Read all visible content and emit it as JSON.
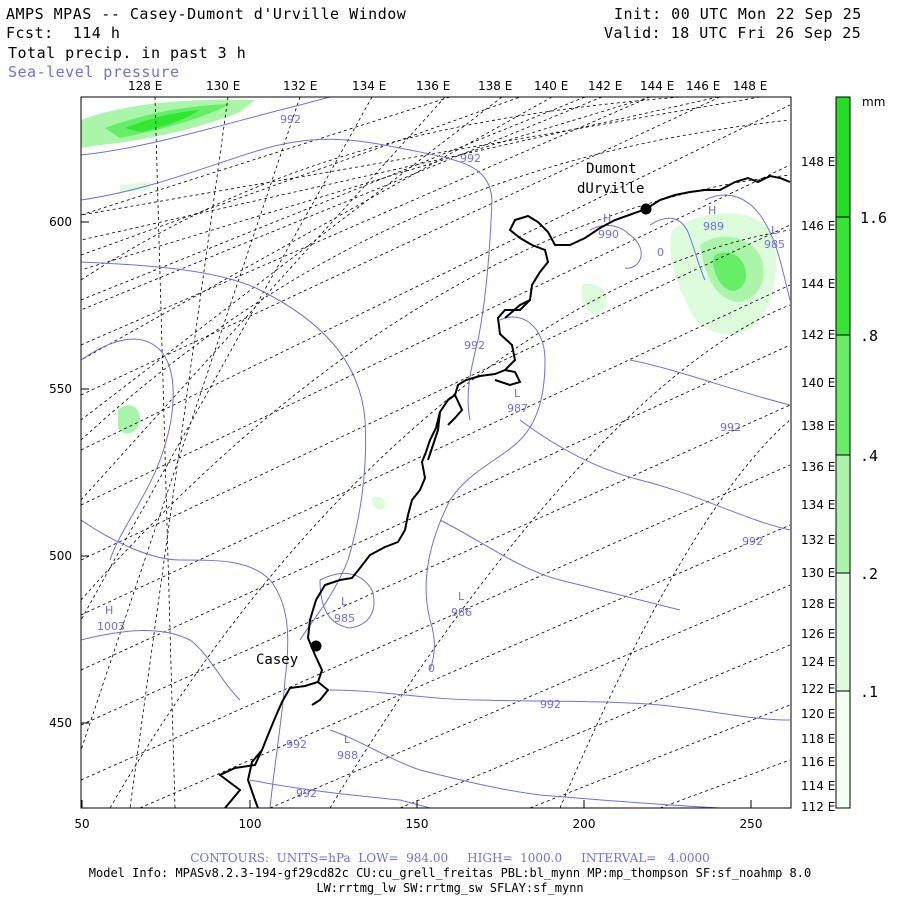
{
  "header": {
    "title": "AMPS MPAS -- Casey-Dumont d'Urville Window",
    "forecast": "Fcst:  114 h",
    "field": "Total precip. in past 3 h",
    "overlay": "Sea-level pressure",
    "init": "Init: 00 UTC Mon 22 Sep 25",
    "valid": "Valid: 18 UTC Fri 26 Sep 25"
  },
  "map": {
    "top_longitudes": [
      "128 E",
      "130 E",
      "132 E",
      "134 E",
      "136 E",
      "138 E",
      "140 E",
      "142 E",
      "144 E",
      "146 E",
      "148 E"
    ],
    "right_longitudes": [
      "148 E",
      "146 E",
      "144 E",
      "142 E",
      "140 E",
      "138 E",
      "136 E",
      "134 E",
      "132 E",
      "130 E",
      "128 E",
      "126 E",
      "124 E",
      "122 E",
      "120 E",
      "118 E",
      "116 E",
      "114 E",
      "112 E"
    ],
    "x_ticks": [
      "50",
      "100",
      "150",
      "200",
      "250"
    ],
    "y_ticks": [
      "600",
      "550",
      "500",
      "450"
    ],
    "stations": [
      {
        "name": "Casey"
      },
      {
        "name_line1": "Dumont",
        "name_line2": "dUrville"
      }
    ],
    "pressure_labels": [
      {
        "kind": "",
        "value": "992"
      },
      {
        "kind": "",
        "value": "992"
      },
      {
        "kind": "H",
        "value": "990"
      },
      {
        "kind": "H",
        "value": "989"
      },
      {
        "kind": "L",
        "value": "985"
      },
      {
        "kind": "",
        "value": "0"
      },
      {
        "kind": "",
        "value": "992"
      },
      {
        "kind": "L",
        "value": "987"
      },
      {
        "kind": "",
        "value": "992"
      },
      {
        "kind": "",
        "value": "992"
      },
      {
        "kind": "L",
        "value": "985"
      },
      {
        "kind": "L",
        "value": "986"
      },
      {
        "kind": "H",
        "value": "1003"
      },
      {
        "kind": "",
        "value": "0"
      },
      {
        "kind": "",
        "value": "992"
      },
      {
        "kind": "",
        "value": "992"
      },
      {
        "kind": "L",
        "value": "988"
      },
      {
        "kind": "",
        "value": "992"
      }
    ]
  },
  "colorbar": {
    "unit": "mm",
    "labels": [
      "1.6",
      ".8",
      ".4",
      ".2",
      ".1"
    ],
    "colors": [
      "#22dd22",
      "#33e633",
      "#66ee66",
      "#aaf5aa",
      "#dcfcdc",
      "#f4fff4"
    ]
  },
  "colors": {
    "contour": "#6f6fe8",
    "coast": "#000000"
  },
  "footer": {
    "contours": "CONTOURS:  UNITS=hPa  LOW=  984.00     HIGH=  1000.0     INTERVAL=   4.0000",
    "model_info": "Model Info: MPASv8.2.3-194-gf29cd82c CU:cu_grell_freitas PBL:bl_mynn MP:mp_thompson SF:sf_noahmp 8.0",
    "model_info2": "LW:rrtmg_lw SW:rrtmg_sw SFLAY:sf_mynn"
  }
}
